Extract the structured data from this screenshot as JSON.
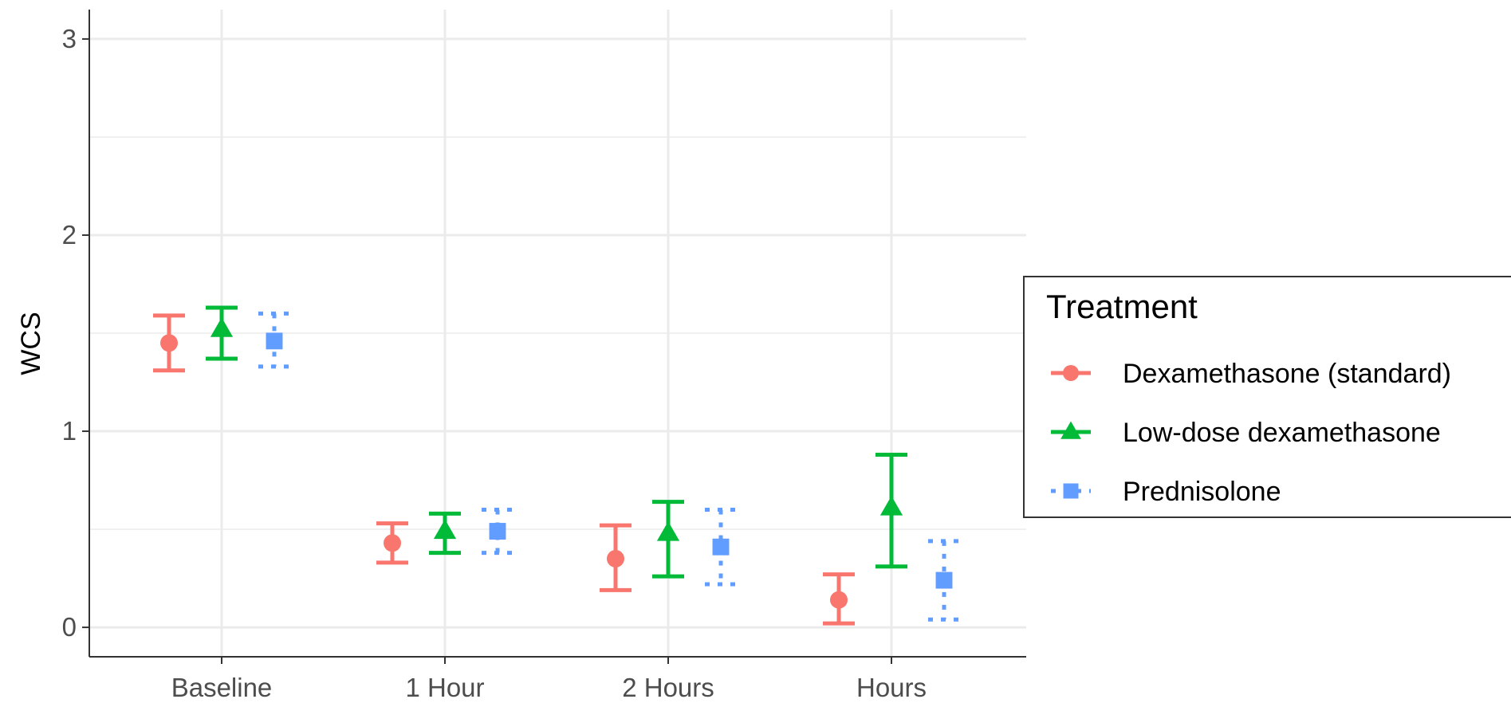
{
  "chart_data": {
    "type": "scatter",
    "title": "",
    "xlabel": "",
    "ylabel": "WCS",
    "categories": [
      "Baseline",
      "1 Hour",
      "2 Hours",
      "Hours"
    ],
    "ylim": [
      -0.15,
      3.15
    ],
    "yticks": [
      0,
      1,
      2,
      3
    ],
    "grid": true,
    "legend": {
      "title": "Treatment",
      "position": "right"
    },
    "series": [
      {
        "name": "Dexamethasone (standard)",
        "color": "#F8766D",
        "shape": "circle",
        "linetype": "solid",
        "values": [
          1.45,
          0.43,
          0.35,
          0.14
        ],
        "lower": [
          1.31,
          0.33,
          0.19,
          0.02
        ],
        "upper": [
          1.59,
          0.53,
          0.52,
          0.27
        ]
      },
      {
        "name": "Low-dose dexamethasone",
        "color": "#00BA38",
        "shape": "triangle",
        "linetype": "solid",
        "values": [
          1.52,
          0.49,
          0.48,
          0.61
        ],
        "lower": [
          1.37,
          0.38,
          0.26,
          0.31
        ],
        "upper": [
          1.63,
          0.58,
          0.64,
          0.88
        ]
      },
      {
        "name": "Prednisolone",
        "color": "#619CFF",
        "shape": "square",
        "linetype": "dotted",
        "values": [
          1.46,
          0.49,
          0.41,
          0.24
        ],
        "lower": [
          1.33,
          0.38,
          0.22,
          0.04
        ],
        "upper": [
          1.6,
          0.6,
          0.6,
          0.44
        ]
      }
    ]
  }
}
